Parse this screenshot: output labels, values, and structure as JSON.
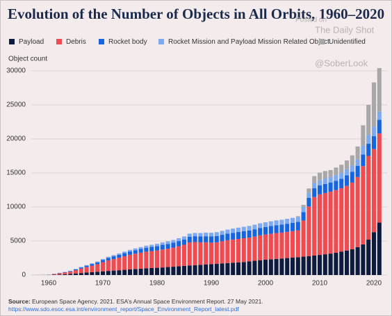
{
  "chart_data": {
    "type": "stacked_bar",
    "title": "Evolution of the Number of Objects in All Orbits, 1960–2020",
    "y_label": "Object count",
    "x": [
      1957,
      1958,
      1959,
      1960,
      1961,
      1962,
      1963,
      1964,
      1965,
      1966,
      1967,
      1968,
      1969,
      1970,
      1971,
      1972,
      1973,
      1974,
      1975,
      1976,
      1977,
      1978,
      1979,
      1980,
      1981,
      1982,
      1983,
      1984,
      1985,
      1986,
      1987,
      1988,
      1989,
      1990,
      1991,
      1992,
      1993,
      1994,
      1995,
      1996,
      1997,
      1998,
      1999,
      2000,
      2001,
      2002,
      2003,
      2004,
      2005,
      2006,
      2007,
      2008,
      2009,
      2010,
      2011,
      2012,
      2013,
      2014,
      2015,
      2016,
      2017,
      2018,
      2019,
      2020,
      2021
    ],
    "xlim": [
      1956,
      2022
    ],
    "xticks": [
      1960,
      1970,
      1980,
      1990,
      2000,
      2010,
      2020
    ],
    "ylim": [
      0,
      30000
    ],
    "yticks": [
      0,
      5000,
      10000,
      15000,
      20000,
      25000,
      30000
    ],
    "grid": true,
    "series": [
      {
        "name": "Payload",
        "color": "#0d1b3e",
        "values": [
          2,
          5,
          10,
          25,
          45,
          80,
          110,
          160,
          230,
          290,
          360,
          420,
          480,
          540,
          600,
          650,
          700,
          760,
          820,
          880,
          930,
          980,
          1020,
          1060,
          1110,
          1170,
          1220,
          1280,
          1340,
          1400,
          1450,
          1500,
          1560,
          1610,
          1660,
          1710,
          1760,
          1810,
          1860,
          1910,
          2000,
          2100,
          2180,
          2250,
          2310,
          2370,
          2430,
          2490,
          2550,
          2620,
          2700,
          2780,
          2860,
          2950,
          3050,
          3150,
          3280,
          3450,
          3600,
          3780,
          4100,
          4500,
          5200,
          6300,
          7700
        ]
      },
      {
        "name": "Debris",
        "color": "#ef4b50",
        "values": [
          0,
          2,
          5,
          15,
          100,
          180,
          250,
          330,
          480,
          650,
          800,
          950,
          1100,
          1350,
          1550,
          1700,
          1850,
          2000,
          2150,
          2250,
          2350,
          2450,
          2500,
          2550,
          2650,
          2700,
          2800,
          2950,
          3100,
          3400,
          3400,
          3300,
          3250,
          3150,
          3150,
          3250,
          3350,
          3400,
          3450,
          3500,
          3500,
          3550,
          3650,
          3700,
          3750,
          3800,
          3800,
          3850,
          3900,
          3950,
          5300,
          7300,
          8600,
          8900,
          9000,
          9100,
          9200,
          9300,
          9500,
          9800,
          10300,
          11500,
          12300,
          12200,
          13100
        ]
      },
      {
        "name": "Rocket body",
        "color": "#1565e0",
        "values": [
          1,
          3,
          5,
          10,
          20,
          40,
          60,
          90,
          130,
          170,
          210,
          250,
          290,
          330,
          370,
          400,
          430,
          460,
          490,
          520,
          550,
          580,
          610,
          640,
          670,
          700,
          730,
          760,
          790,
          820,
          850,
          870,
          890,
          910,
          930,
          950,
          970,
          990,
          1010,
          1030,
          1050,
          1070,
          1090,
          1110,
          1130,
          1150,
          1170,
          1190,
          1210,
          1230,
          1250,
          1270,
          1290,
          1310,
          1330,
          1350,
          1370,
          1390,
          1550,
          1600,
          1650,
          1700,
          1800,
          1900,
          2000
        ]
      },
      {
        "name": "Rocket Mission and Payload Mission Related Object",
        "color": "#7eaaf0",
        "values": [
          0,
          1,
          2,
          5,
          10,
          20,
          30,
          40,
          55,
          70,
          85,
          100,
          120,
          140,
          160,
          180,
          200,
          220,
          240,
          260,
          280,
          300,
          320,
          340,
          360,
          380,
          400,
          420,
          440,
          460,
          480,
          500,
          520,
          540,
          560,
          580,
          600,
          620,
          640,
          650,
          660,
          670,
          680,
          690,
          700,
          710,
          720,
          730,
          740,
          750,
          760,
          770,
          780,
          790,
          800,
          820,
          840,
          860,
          880,
          900,
          930,
          1300,
          1300,
          1400,
          1200
        ]
      },
      {
        "name": "Unidentified",
        "color": "#a8a8a8",
        "values": [
          0,
          0,
          0,
          0,
          0,
          0,
          0,
          0,
          0,
          0,
          0,
          0,
          0,
          0,
          0,
          0,
          0,
          0,
          0,
          0,
          0,
          0,
          0,
          0,
          0,
          0,
          0,
          0,
          0,
          0,
          0,
          0,
          0,
          0,
          0,
          0,
          0,
          0,
          0,
          0,
          0,
          0,
          0,
          0,
          0,
          0,
          0,
          0,
          0,
          100,
          300,
          600,
          1000,
          1100,
          1100,
          1000,
          1100,
          1200,
          1300,
          1500,
          1900,
          3000,
          4400,
          6500,
          6400
        ]
      }
    ]
  },
  "watermark": {
    "posted": "Posted on",
    "site": "The Daily Shot",
    "handle": "@SoberLook"
  },
  "source": {
    "label": "Source:",
    "text": "European Space Agency. 2021. ESA’s Annual Space Environment Report. 27 May 2021.",
    "url": "https://www.sdo.esoc.esa.int/environment_report/Space_Environment_Report_latest.pdf"
  }
}
